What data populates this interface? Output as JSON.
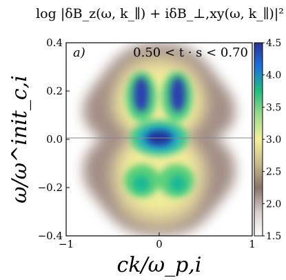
{
  "chart_data": {
    "type": "heatmap",
    "title": "log |δB_z(ω, k_∥) + iδB_⊥,xy(ω, k_∥)|²",
    "xlabel": "ck/ω_p,i",
    "ylabel": "ω/ω^init_c,i",
    "xlim": [
      -1,
      1
    ],
    "ylim": [
      -0.4,
      0.4
    ],
    "x_ticks": [
      -1,
      0,
      1
    ],
    "x_tick_labels": [
      "−1",
      "0",
      "1"
    ],
    "y_ticks": [
      -0.4,
      -0.2,
      0.0,
      0.2,
      0.4
    ],
    "y_tick_labels": [
      "−0.4",
      "−0.2",
      "0.0",
      "0.2",
      "0.4"
    ],
    "panel_label": "a)",
    "annotation": "0.50 < t · s < 0.70",
    "colorbar": {
      "range": [
        1.5,
        4.5
      ],
      "ticks": [
        1.5,
        2.0,
        2.5,
        3.0,
        3.5,
        4.0,
        4.5
      ],
      "tick_labels": [
        "1.5",
        "2.0",
        "2.5",
        "3.0",
        "3.5",
        "4.0",
        "4.5"
      ],
      "colormap": "terrain_r"
    },
    "horizontal_line_y": 0.0,
    "features": [
      {
        "x": 0.0,
        "y": 0.0,
        "value": 4.5
      },
      {
        "x": -0.13,
        "y": 0.18,
        "value": 4.4
      },
      {
        "x": 0.13,
        "y": 0.18,
        "value": 4.4
      },
      {
        "x": -0.15,
        "y": -0.17,
        "value": 3.8
      },
      {
        "x": 0.15,
        "y": -0.17,
        "value": 3.8
      }
    ]
  }
}
